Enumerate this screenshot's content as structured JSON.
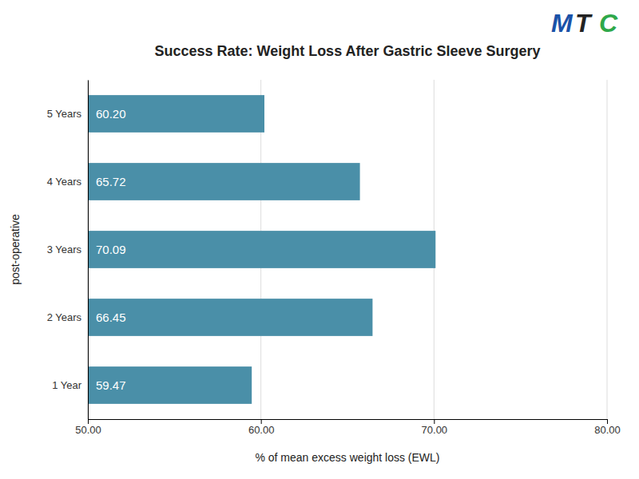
{
  "chart_data": {
    "type": "bar",
    "orientation": "horizontal",
    "title": "Success Rate: Weight Loss After Gastric Sleeve Surgery",
    "xlabel": "% of mean excess weight loss (EWL)",
    "ylabel": "post-operative",
    "categories": [
      "1 Year",
      "2 Years",
      "3 Years",
      "4 Years",
      "5 Years"
    ],
    "values": [
      59.47,
      66.45,
      70.09,
      65.72,
      60.2
    ],
    "value_labels": [
      "59.47",
      "66.45",
      "70.09",
      "65.72",
      "60.20"
    ],
    "data_labels": true,
    "color": "#4a8fa8",
    "xlim": [
      50,
      80
    ],
    "xticks": [
      {
        "value": 50,
        "label": "50.00"
      },
      {
        "value": 60,
        "label": "60.00"
      },
      {
        "value": 70,
        "label": "70.00"
      },
      {
        "value": 80,
        "label": "80.00"
      }
    ],
    "grid": true,
    "annotations": [
      {
        "text": "M",
        "color": "#1a52a8"
      },
      {
        "text": "T",
        "color": "#222222"
      },
      {
        "text": "C",
        "color": "#2ea84a"
      }
    ]
  }
}
